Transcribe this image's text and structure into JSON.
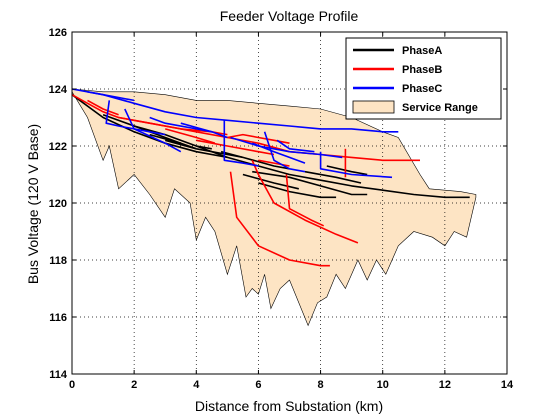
{
  "chart_data": {
    "type": "line",
    "title": "Feeder Voltage Profile",
    "xlabel": "Distance from Substation (km)",
    "ylabel": "Bus Voltage (120 V Base)",
    "xlim": [
      0,
      14
    ],
    "ylim": [
      114,
      126
    ],
    "x_ticks": [
      0,
      2,
      4,
      6,
      8,
      10,
      12,
      14
    ],
    "y_ticks": [
      114,
      116,
      118,
      120,
      122,
      124,
      126
    ],
    "grid": true,
    "legend_position": "top-right",
    "series": [
      {
        "name": "PhaseA",
        "color": "#000000",
        "segments": [
          [
            [
              0,
              123.8
            ],
            [
              1,
              123.0
            ],
            [
              2,
              122.5
            ],
            [
              3,
              122.1
            ],
            [
              4,
              121.8
            ],
            [
              5,
              121.6
            ],
            [
              6,
              121.3
            ],
            [
              7,
              121.0
            ],
            [
              8,
              120.8
            ],
            [
              9,
              120.6
            ],
            [
              10,
              120.45
            ],
            [
              11,
              120.3
            ],
            [
              12,
              120.2
            ],
            [
              12.8,
              120.2
            ]
          ],
          [
            [
              1,
              123.1
            ],
            [
              2,
              122.7
            ],
            [
              3,
              122.3
            ],
            [
              3.5,
              122.1
            ]
          ],
          [
            [
              2,
              122.7
            ],
            [
              3,
              122.4
            ],
            [
              4,
              122.0
            ],
            [
              4.5,
              121.9
            ]
          ],
          [
            [
              3,
              122.2
            ],
            [
              4,
              121.9
            ],
            [
              5,
              121.7
            ],
            [
              5.5,
              121.6
            ]
          ],
          [
            [
              4.8,
              121.8
            ],
            [
              5.5,
              121.6
            ],
            [
              6.5,
              121.3
            ],
            [
              7,
              121.2
            ]
          ],
          [
            [
              5.5,
              121.0
            ],
            [
              6.5,
              120.7
            ],
            [
              7.3,
              120.5
            ]
          ],
          [
            [
              5.8,
              121.1
            ],
            [
              7,
              120.9
            ],
            [
              8,
              120.6
            ],
            [
              9,
              120.3
            ],
            [
              9.5,
              120.3
            ]
          ],
          [
            [
              6,
              120.7
            ],
            [
              7,
              120.4
            ],
            [
              8,
              120.2
            ],
            [
              8.5,
              120.2
            ]
          ],
          [
            [
              7.5,
              121.1
            ],
            [
              8.5,
              120.9
            ],
            [
              9.3,
              120.7
            ]
          ],
          [
            [
              8.2,
              121.3
            ],
            [
              9,
              121.1
            ],
            [
              9.5,
              121.0
            ]
          ],
          [
            [
              2.5,
              122.4
            ],
            [
              3.5,
              122.1
            ],
            [
              4,
              121.9
            ]
          ],
          [
            [
              4,
              122.0
            ],
            [
              5,
              121.6
            ]
          ]
        ]
      },
      {
        "name": "PhaseB",
        "color": "#ff0000",
        "segments": [
          [
            [
              0,
              123.8
            ],
            [
              0.5,
              123.5
            ],
            [
              1,
              123.2
            ],
            [
              1.5,
              123.0
            ],
            [
              2,
              122.9
            ],
            [
              3,
              122.7
            ],
            [
              4,
              122.5
            ],
            [
              5,
              122.3
            ],
            [
              6,
              122.1
            ],
            [
              7,
              121.8
            ],
            [
              8,
              121.7
            ],
            [
              9,
              121.6
            ],
            [
              10,
              121.5
            ],
            [
              11.2,
              121.5
            ]
          ],
          [
            [
              0.5,
              123.6
            ],
            [
              1,
              123.3
            ],
            [
              1.5,
              123.1
            ]
          ],
          [
            [
              1.5,
              123.0
            ],
            [
              2.5,
              122.8
            ],
            [
              3.5,
              122.6
            ],
            [
              4.5,
              122.5
            ],
            [
              5,
              122.4
            ]
          ],
          [
            [
              4,
              122.2
            ],
            [
              5,
              122.0
            ],
            [
              6,
              121.8
            ],
            [
              6.5,
              121.7
            ]
          ],
          [
            [
              5,
              122.3
            ],
            [
              5.5,
              122.4
            ],
            [
              6,
              122.3
            ],
            [
              6.5,
              122.2
            ],
            [
              7,
              122.1
            ]
          ],
          [
            [
              5.1,
              121.1
            ],
            [
              5.3,
              119.5
            ],
            [
              6,
              118.5
            ],
            [
              7,
              118.0
            ],
            [
              8,
              117.8
            ],
            [
              8.3,
              117.8
            ]
          ],
          [
            [
              5.8,
              121.5
            ],
            [
              6,
              121.0
            ],
            [
              6.5,
              120.0
            ],
            [
              7.5,
              119.4
            ],
            [
              8.5,
              118.9
            ],
            [
              9.2,
              118.6
            ]
          ],
          [
            [
              6.9,
              121.0
            ],
            [
              7,
              119.8
            ],
            [
              7.7,
              119.4
            ],
            [
              8.1,
              119.2
            ]
          ],
          [
            [
              8.8,
              121.9
            ],
            [
              8.8,
              120.9
            ]
          ],
          [
            [
              6,
              121.5
            ],
            [
              6.5,
              121.4
            ],
            [
              7,
              121.3
            ]
          ],
          [
            [
              3,
              122.6
            ],
            [
              4,
              122.3
            ],
            [
              4.6,
              122.1
            ]
          ]
        ]
      },
      {
        "name": "PhaseC",
        "color": "#0000ff",
        "segments": [
          [
            [
              0,
              124.0
            ],
            [
              1,
              123.8
            ],
            [
              2,
              123.5
            ],
            [
              3,
              123.2
            ],
            [
              4,
              123.0
            ],
            [
              5,
              122.9
            ],
            [
              6,
              122.8
            ],
            [
              7,
              122.7
            ],
            [
              8,
              122.6
            ],
            [
              9,
              122.6
            ],
            [
              10,
              122.5
            ],
            [
              10.5,
              122.5
            ]
          ],
          [
            [
              0.5,
              123.9
            ],
            [
              1,
              123.8
            ],
            [
              1.5,
              123.7
            ],
            [
              2,
              123.6
            ]
          ],
          [
            [
              1.2,
              123.6
            ],
            [
              1.1,
              122.8
            ],
            [
              1.5,
              122.7
            ],
            [
              2,
              122.6
            ],
            [
              2.5,
              122.5
            ],
            [
              3,
              122.4
            ]
          ],
          [
            [
              1.7,
              123.3
            ],
            [
              2,
              122.6
            ],
            [
              3,
              122.1
            ],
            [
              3.5,
              121.8
            ]
          ],
          [
            [
              2.5,
              123.0
            ],
            [
              3,
              122.8
            ],
            [
              4,
              122.6
            ],
            [
              4.5,
              122.5
            ]
          ],
          [
            [
              4.9,
              122.9
            ],
            [
              4.9,
              121.5
            ],
            [
              5.5,
              121.4
            ],
            [
              6,
              121.3
            ]
          ],
          [
            [
              5.1,
              122.3
            ],
            [
              6,
              122.0
            ],
            [
              7,
              121.8
            ],
            [
              8,
              121.7
            ],
            [
              8.7,
              121.6
            ]
          ],
          [
            [
              5.8,
              122.1
            ],
            [
              6.5,
              121.8
            ],
            [
              7,
              121.6
            ],
            [
              7.5,
              121.4
            ]
          ],
          [
            [
              6.2,
              122.5
            ],
            [
              6.5,
              121.5
            ],
            [
              7,
              121.2
            ],
            [
              7.5,
              121.1
            ]
          ],
          [
            [
              8,
              121.8
            ],
            [
              8,
              121.2
            ],
            [
              9,
              121.0
            ],
            [
              10.3,
              120.9
            ]
          ],
          [
            [
              6.6,
              122.2
            ],
            [
              7,
              121.9
            ],
            [
              7.8,
              121.8
            ]
          ],
          [
            [
              3.5,
              122.8
            ],
            [
              4.5,
              122.5
            ],
            [
              5,
              122.3
            ]
          ]
        ]
      },
      {
        "name": "Service Range",
        "color": "#fde4c4",
        "upper": [
          [
            0,
            124.0
          ],
          [
            1,
            123.9
          ],
          [
            2,
            123.9
          ],
          [
            3,
            123.8
          ],
          [
            4,
            123.6
          ],
          [
            5,
            123.6
          ],
          [
            6,
            123.5
          ],
          [
            7,
            123.4
          ],
          [
            8,
            123.3
          ],
          [
            9,
            123.0
          ],
          [
            10,
            122.5
          ],
          [
            10.5,
            122.3
          ],
          [
            11.2,
            121.0
          ],
          [
            11.5,
            120.5
          ],
          [
            12.5,
            120.4
          ],
          [
            13,
            120.3
          ]
        ],
        "lower": [
          [
            0,
            123.9
          ],
          [
            0.5,
            123.0
          ],
          [
            1,
            121.5
          ],
          [
            1.2,
            122.0
          ],
          [
            1.5,
            120.5
          ],
          [
            2,
            121.0
          ],
          [
            2.5,
            120.3
          ],
          [
            3,
            119.5
          ],
          [
            3.3,
            120.5
          ],
          [
            3.8,
            120.0
          ],
          [
            4,
            118.7
          ],
          [
            4.3,
            119.5
          ],
          [
            4.6,
            119.0
          ],
          [
            5,
            117.5
          ],
          [
            5.3,
            118.5
          ],
          [
            5.6,
            116.7
          ],
          [
            5.8,
            117.0
          ],
          [
            6.0,
            116.8
          ],
          [
            6.2,
            117.5
          ],
          [
            6.4,
            116.3
          ],
          [
            6.7,
            117.0
          ],
          [
            7.0,
            117.3
          ],
          [
            7.3,
            116.5
          ],
          [
            7.6,
            115.7
          ],
          [
            7.9,
            116.5
          ],
          [
            8.2,
            116.7
          ],
          [
            8.5,
            117.5
          ],
          [
            8.8,
            117.0
          ],
          [
            9.2,
            118.0
          ],
          [
            9.5,
            117.3
          ],
          [
            9.8,
            118.0
          ],
          [
            10.1,
            117.5
          ],
          [
            10.5,
            118.5
          ],
          [
            11.0,
            119.0
          ],
          [
            11.6,
            118.8
          ],
          [
            12.0,
            118.5
          ],
          [
            12.3,
            119.0
          ],
          [
            12.7,
            118.8
          ],
          [
            13,
            120.2
          ]
        ]
      }
    ]
  }
}
